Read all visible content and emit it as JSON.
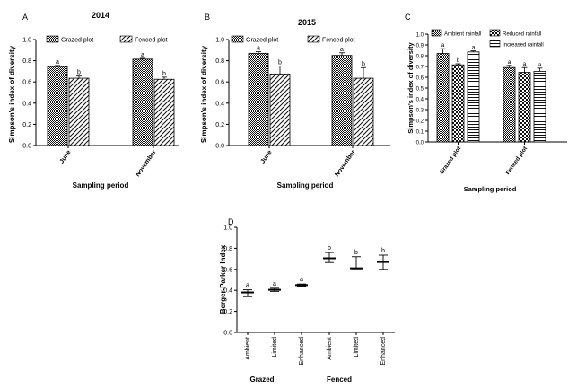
{
  "chart_data": [
    {
      "id": "A",
      "panel_label": "A",
      "type": "bar",
      "title": "2014",
      "xlabel": "Sampling period",
      "ylabel": "Simpson's index of diversity",
      "ylim": [
        0,
        1.0
      ],
      "yticks": [
        "0.0",
        "0.2",
        "0.4",
        "0.6",
        "0.8",
        "1.0"
      ],
      "categories": [
        "June",
        "November"
      ],
      "legend_position": "top",
      "series": [
        {
          "name": "Grazed plot",
          "pattern": "dense",
          "values": [
            0.745,
            0.815
          ],
          "errors": [
            0.01,
            0.008
          ],
          "letters": [
            "a",
            "a"
          ]
        },
        {
          "name": "Fenced plot",
          "pattern": "diag",
          "values": [
            0.635,
            0.625
          ],
          "errors": [
            0.02,
            0.02
          ],
          "letters": [
            "b",
            "b"
          ]
        }
      ]
    },
    {
      "id": "B",
      "panel_label": "B",
      "type": "bar",
      "title": "2015",
      "xlabel": "Sampling period",
      "ylabel": "Simpson's index of diversity",
      "ylim": [
        0,
        1.0
      ],
      "yticks": [
        "0.0",
        "0.2",
        "0.4",
        "0.6",
        "0.8",
        "1.0"
      ],
      "categories": [
        "June",
        "November"
      ],
      "legend_position": "top",
      "series": [
        {
          "name": "Grazed plot",
          "pattern": "dense",
          "values": [
            0.87,
            0.85
          ],
          "errors": [
            0.015,
            0.025
          ],
          "letters": [
            "a",
            "a"
          ]
        },
        {
          "name": "Fenced plot",
          "pattern": "diag",
          "values": [
            0.675,
            0.635
          ],
          "errors": [
            0.075,
            0.1
          ],
          "letters": [
            "b",
            "b"
          ]
        }
      ]
    },
    {
      "id": "C",
      "panel_label": "C",
      "type": "bar",
      "title": "",
      "xlabel": "Sampling period",
      "ylabel": "Simpson's index of diversity",
      "ylim": [
        0,
        1.0
      ],
      "yticks": [
        "0.0",
        "0.1",
        "0.2",
        "0.3",
        "0.4",
        "0.5",
        "0.6",
        "0.7",
        "0.8",
        "0.9",
        "1.0"
      ],
      "categories": [
        "Grazed plot",
        "Fenced plot"
      ],
      "legend_position": "top",
      "series": [
        {
          "name": "Ambient rainfall",
          "pattern": "dense",
          "values": [
            0.82,
            0.69
          ],
          "errors": [
            0.045,
            0.02
          ],
          "letters": [
            "a",
            "a"
          ]
        },
        {
          "name": "Reduced rainfall",
          "pattern": "check",
          "values": [
            0.715,
            0.645
          ],
          "errors": [
            0.01,
            0.045
          ],
          "letters": [
            "b",
            "a"
          ]
        },
        {
          "name": "Increased rainfall",
          "pattern": "horiz",
          "values": [
            0.835,
            0.655
          ],
          "errors": [
            0.01,
            0.03
          ],
          "letters": [
            "a",
            "a"
          ]
        }
      ]
    },
    {
      "id": "D",
      "panel_label": "D",
      "type": "scatter",
      "title": "",
      "xlabel": "",
      "ylabel": "Berger-Parker Index",
      "ylim": [
        0,
        1.0
      ],
      "yticks": [
        "0.0",
        "0.2",
        "0.4",
        "0.6",
        "0.8",
        "1.0"
      ],
      "categories": [
        "Ambient",
        "Limited",
        "Enhanced",
        "Ambient",
        "Limited",
        "Enhanced"
      ],
      "groups": [
        {
          "label": "Grazed",
          "members": [
            0,
            1,
            2
          ]
        },
        {
          "label": "Fenced",
          "members": [
            3,
            4,
            5
          ]
        }
      ],
      "series": [
        {
          "name": "Berger-Parker Index",
          "values": [
            0.38,
            0.405,
            0.45,
            0.705,
            0.61,
            0.67
          ],
          "low": [
            0.34,
            0.39,
            0.44,
            0.665,
            0.605,
            0.6
          ],
          "high": [
            0.405,
            0.42,
            0.46,
            0.76,
            0.72,
            0.735
          ],
          "letters": [
            "a",
            "a",
            "a",
            "b",
            "b",
            "b"
          ]
        }
      ]
    }
  ]
}
